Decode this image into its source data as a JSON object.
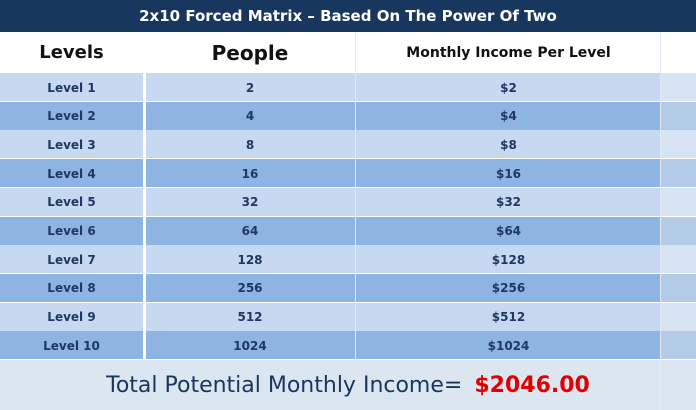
{
  "title": "2x10 Forced Matrix – Based On The Power Of Two",
  "table": {
    "header": [
      "Levels",
      "People",
      "Monthly Income Per Level"
    ],
    "rows": [
      [
        "Level 1",
        "2",
        "$2"
      ],
      [
        "Level 2",
        "4",
        "$4"
      ],
      [
        "Level 3",
        "8",
        "$8"
      ],
      [
        "Level 4",
        "16",
        "$16"
      ],
      [
        "Level 5",
        "32",
        "$32"
      ],
      [
        "Level 6",
        "64",
        "$64"
      ],
      [
        "Level 7",
        "128",
        "$128"
      ],
      [
        "Level 8",
        "256",
        "$256"
      ],
      [
        "Level 9",
        "512",
        "$512"
      ],
      [
        "Level 10",
        "1024",
        "$1024"
      ]
    ]
  },
  "total": {
    "label": "Total Potential Monthly Income=",
    "value": "$2046.00"
  }
}
